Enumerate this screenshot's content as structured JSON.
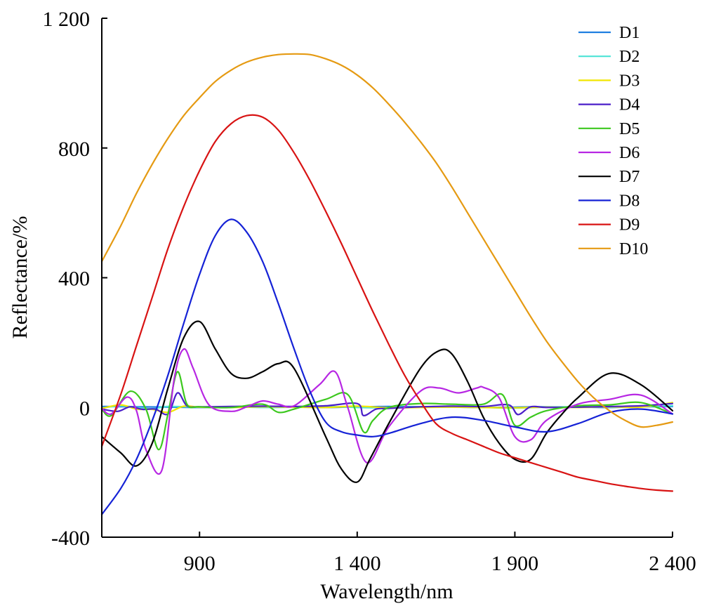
{
  "chart_data": {
    "type": "line",
    "title": "",
    "xlabel": "Wavelength/nm",
    "ylabel": "Reflectance/%",
    "xlim": [
      590,
      2400
    ],
    "ylim": [
      -400,
      1200
    ],
    "xticks": [
      900,
      1400,
      1900,
      2400
    ],
    "xtick_labels": [
      "900",
      "1 400",
      "1 900",
      "2 400"
    ],
    "yticks": [
      -400,
      400,
      800,
      1200
    ],
    "ytick_labels": [
      "-400",
      "400",
      "800",
      "1 200"
    ],
    "zero_label": "0",
    "grid": false,
    "legend_position": "top-right",
    "series": [
      {
        "name": "D1",
        "color": "#1f7fe0",
        "x": [
          590,
          700,
          800,
          900,
          1000,
          1100,
          1200,
          1300,
          1400,
          1500,
          1600,
          1700,
          1800,
          1900,
          2000,
          2100,
          2200,
          2300,
          2400
        ],
        "y": [
          3,
          2,
          1,
          0,
          1,
          2,
          1,
          0,
          2,
          3,
          2,
          1,
          0,
          1,
          2,
          1,
          0,
          2,
          3
        ]
      },
      {
        "name": "D2",
        "color": "#4de3d6",
        "x": [
          590,
          650,
          700,
          750,
          800,
          900,
          1000,
          1100,
          1200,
          1300,
          1400,
          1500,
          1600,
          1700,
          1800,
          1900,
          2000,
          2100,
          2200,
          2300,
          2400
        ],
        "y": [
          -2,
          5,
          0,
          -4,
          3,
          1,
          2,
          0,
          1,
          3,
          0,
          -1,
          2,
          1,
          0,
          -2,
          1,
          2,
          1,
          3,
          5
        ]
      },
      {
        "name": "D3",
        "color": "#f2e600",
        "x": [
          590,
          650,
          700,
          750,
          800,
          850,
          900,
          1000,
          1100,
          1200,
          1300,
          1400,
          1500,
          1600,
          1700,
          1800,
          1900,
          2000,
          2100,
          2200,
          2300,
          2400
        ],
        "y": [
          -3,
          8,
          -5,
          -6,
          -15,
          4,
          1,
          0,
          2,
          1,
          0,
          4,
          -1,
          0,
          1,
          0,
          -1,
          1,
          0,
          2,
          1,
          15
        ]
      },
      {
        "name": "D4",
        "color": "#4b1fc9",
        "x": [
          590,
          640,
          680,
          720,
          760,
          800,
          830,
          860,
          900,
          1000,
          1100,
          1200,
          1300,
          1400,
          1420,
          1460,
          1500,
          1600,
          1700,
          1800,
          1880,
          1910,
          1950,
          2000,
          2100,
          2200,
          2300,
          2400
        ],
        "y": [
          -5,
          -12,
          2,
          -6,
          -5,
          -20,
          45,
          5,
          2,
          3,
          4,
          3,
          5,
          12,
          -25,
          -5,
          -3,
          2,
          4,
          3,
          8,
          -22,
          2,
          0,
          1,
          3,
          5,
          12
        ]
      },
      {
        "name": "D5",
        "color": "#3cc81e",
        "x": [
          590,
          620,
          680,
          730,
          770,
          800,
          830,
          860,
          900,
          1000,
          1100,
          1150,
          1200,
          1300,
          1370,
          1420,
          1450,
          1500,
          1600,
          1700,
          1800,
          1860,
          1900,
          1950,
          2000,
          2100,
          2200,
          2300,
          2400
        ],
        "y": [
          -5,
          -25,
          50,
          -5,
          -130,
          -20,
          110,
          10,
          2,
          0,
          10,
          -15,
          -5,
          25,
          40,
          -75,
          -40,
          0,
          12,
          10,
          10,
          40,
          -55,
          -30,
          -10,
          5,
          8,
          15,
          -20
        ]
      },
      {
        "name": "D6",
        "color": "#b727e3",
        "x": [
          590,
          620,
          670,
          700,
          730,
          780,
          820,
          850,
          880,
          930,
          1000,
          1050,
          1100,
          1150,
          1200,
          1280,
          1330,
          1370,
          1430,
          1500,
          1600,
          1660,
          1720,
          1780,
          1800,
          1850,
          1900,
          1950,
          2000,
          2100,
          2200,
          2300,
          2400
        ],
        "y": [
          -3,
          -20,
          32,
          -10,
          -130,
          -195,
          90,
          180,
          120,
          8,
          -12,
          2,
          20,
          10,
          5,
          70,
          110,
          0,
          -170,
          -60,
          50,
          60,
          45,
          60,
          62,
          30,
          -90,
          -100,
          -40,
          10,
          25,
          38,
          -20
        ]
      },
      {
        "name": "D7",
        "color": "#000000",
        "x": [
          590,
          650,
          700,
          750,
          800,
          850,
          900,
          950,
          1000,
          1050,
          1100,
          1150,
          1200,
          1300,
          1350,
          1400,
          1440,
          1500,
          1600,
          1660,
          1700,
          1750,
          1800,
          1850,
          1900,
          1950,
          2000,
          2050,
          2100,
          2200,
          2300,
          2400
        ],
        "y": [
          -90,
          -140,
          -180,
          -110,
          60,
          215,
          265,
          180,
          105,
          90,
          110,
          135,
          120,
          -90,
          -190,
          -230,
          -160,
          -50,
          120,
          175,
          165,
          80,
          -30,
          -110,
          -160,
          -160,
          -80,
          -20,
          30,
          105,
          70,
          -10
        ]
      },
      {
        "name": "D8",
        "color": "#1522d6",
        "x": [
          590,
          650,
          700,
          750,
          800,
          850,
          900,
          950,
          1000,
          1050,
          1100,
          1150,
          1200,
          1250,
          1300,
          1350,
          1400,
          1450,
          1500,
          1600,
          1700,
          1800,
          1900,
          2000,
          2100,
          2200,
          2300,
          2400
        ],
        "y": [
          -330,
          -250,
          -160,
          -40,
          100,
          260,
          410,
          530,
          580,
          540,
          450,
          320,
          180,
          50,
          -45,
          -75,
          -85,
          -90,
          -80,
          -50,
          -30,
          -40,
          -60,
          -75,
          -50,
          -15,
          -5,
          -20
        ]
      },
      {
        "name": "D9",
        "color": "#d81313",
        "x": [
          590,
          650,
          700,
          750,
          800,
          850,
          900,
          950,
          1000,
          1050,
          1100,
          1150,
          1200,
          1250,
          1300,
          1350,
          1400,
          1450,
          1500,
          1550,
          1600,
          1650,
          1700,
          1750,
          1800,
          1850,
          1900,
          1950,
          2000,
          2050,
          2100,
          2150,
          2200,
          2250,
          2300,
          2350,
          2400
        ],
        "y": [
          -120,
          40,
          190,
          340,
          490,
          620,
          730,
          820,
          875,
          900,
          895,
          855,
          785,
          700,
          605,
          505,
          400,
          295,
          195,
          100,
          20,
          -50,
          -80,
          -100,
          -120,
          -140,
          -155,
          -170,
          -185,
          -200,
          -215,
          -225,
          -235,
          -243,
          -250,
          -255,
          -258
        ]
      },
      {
        "name": "D10",
        "color": "#e59a12",
        "x": [
          590,
          650,
          700,
          750,
          800,
          850,
          900,
          950,
          1000,
          1050,
          1100,
          1150,
          1200,
          1250,
          1300,
          1350,
          1400,
          1450,
          1500,
          1550,
          1600,
          1650,
          1700,
          1750,
          1800,
          1850,
          1900,
          1950,
          2000,
          2050,
          2100,
          2150,
          2200,
          2250,
          2300,
          2350,
          2400
        ],
        "y": [
          450,
          560,
          660,
          750,
          830,
          900,
          955,
          1005,
          1040,
          1065,
          1080,
          1088,
          1090,
          1088,
          1075,
          1055,
          1025,
          985,
          935,
          880,
          820,
          755,
          680,
          600,
          520,
          440,
          360,
          280,
          205,
          140,
          80,
          30,
          -10,
          -40,
          -60,
          -55,
          -45
        ]
      }
    ]
  }
}
